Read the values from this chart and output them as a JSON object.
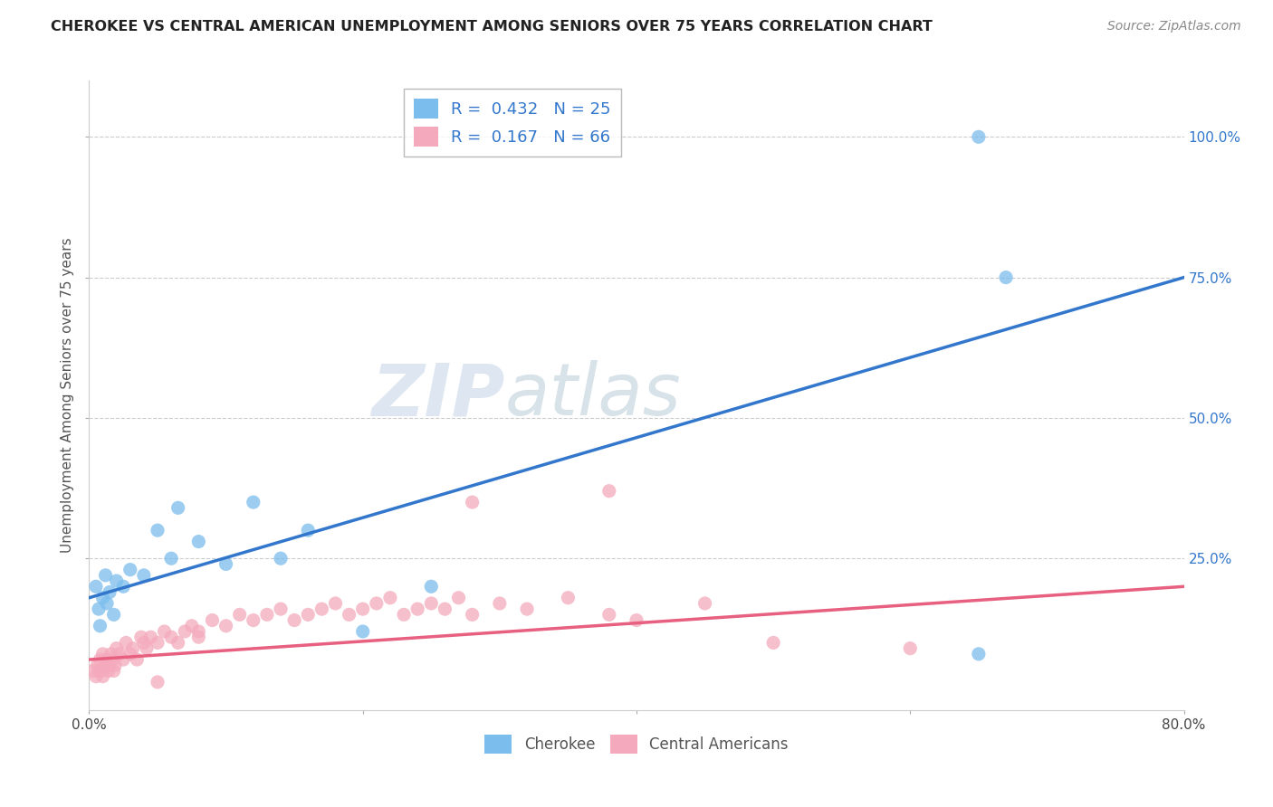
{
  "title": "CHEROKEE VS CENTRAL AMERICAN UNEMPLOYMENT AMONG SENIORS OVER 75 YEARS CORRELATION CHART",
  "source": "Source: ZipAtlas.com",
  "ylabel": "Unemployment Among Seniors over 75 years",
  "cherokee_R": 0.432,
  "cherokee_N": 25,
  "central_american_R": 0.167,
  "central_american_N": 66,
  "cherokee_color": "#7BBDED",
  "central_american_color": "#F4AABC",
  "cherokee_line_color": "#3377CC",
  "central_american_line_color": "#E86080",
  "xlim": [
    0.0,
    0.8
  ],
  "ylim": [
    -0.02,
    1.1
  ],
  "xtick_labels": [
    "0.0%",
    "",
    "",
    "",
    "80.0%"
  ],
  "xtick_vals": [
    0.0,
    0.2,
    0.4,
    0.6,
    0.8
  ],
  "ytick_labels": [
    "25.0%",
    "50.0%",
    "75.0%",
    "100.0%"
  ],
  "ytick_vals": [
    0.25,
    0.5,
    0.75,
    1.0
  ],
  "ch_line_x0": 0.0,
  "ch_line_y0": 0.18,
  "ch_line_x1": 0.8,
  "ch_line_y1": 0.75,
  "ca_line_x0": 0.0,
  "ca_line_y0": 0.07,
  "ca_line_x1": 0.8,
  "ca_line_y1": 0.2,
  "cherokee_x": [
    0.005,
    0.007,
    0.008,
    0.01,
    0.012,
    0.013,
    0.015,
    0.018,
    0.02,
    0.025,
    0.03,
    0.04,
    0.05,
    0.06,
    0.065,
    0.08,
    0.1,
    0.12,
    0.14,
    0.16,
    0.2,
    0.25,
    0.65,
    0.65,
    0.67
  ],
  "cherokee_y": [
    0.2,
    0.16,
    0.13,
    0.18,
    0.22,
    0.17,
    0.19,
    0.15,
    0.21,
    0.2,
    0.23,
    0.22,
    0.3,
    0.25,
    0.34,
    0.28,
    0.24,
    0.35,
    0.25,
    0.3,
    0.12,
    0.2,
    1.0,
    0.08,
    0.75
  ],
  "central_american_x": [
    0.003,
    0.005,
    0.006,
    0.007,
    0.008,
    0.009,
    0.01,
    0.01,
    0.012,
    0.013,
    0.014,
    0.015,
    0.016,
    0.017,
    0.018,
    0.019,
    0.02,
    0.022,
    0.025,
    0.027,
    0.03,
    0.032,
    0.035,
    0.038,
    0.04,
    0.042,
    0.045,
    0.05,
    0.055,
    0.06,
    0.065,
    0.07,
    0.075,
    0.08,
    0.09,
    0.1,
    0.11,
    0.12,
    0.13,
    0.14,
    0.15,
    0.16,
    0.17,
    0.18,
    0.19,
    0.2,
    0.21,
    0.22,
    0.23,
    0.24,
    0.25,
    0.26,
    0.27,
    0.28,
    0.3,
    0.32,
    0.35,
    0.38,
    0.4,
    0.45,
    0.5,
    0.6,
    0.38,
    0.28,
    0.08,
    0.05
  ],
  "central_american_y": [
    0.05,
    0.04,
    0.06,
    0.05,
    0.07,
    0.05,
    0.04,
    0.08,
    0.06,
    0.07,
    0.05,
    0.06,
    0.08,
    0.07,
    0.05,
    0.06,
    0.09,
    0.08,
    0.07,
    0.1,
    0.08,
    0.09,
    0.07,
    0.11,
    0.1,
    0.09,
    0.11,
    0.1,
    0.12,
    0.11,
    0.1,
    0.12,
    0.13,
    0.11,
    0.14,
    0.13,
    0.15,
    0.14,
    0.15,
    0.16,
    0.14,
    0.15,
    0.16,
    0.17,
    0.15,
    0.16,
    0.17,
    0.18,
    0.15,
    0.16,
    0.17,
    0.16,
    0.18,
    0.15,
    0.17,
    0.16,
    0.18,
    0.15,
    0.14,
    0.17,
    0.1,
    0.09,
    0.37,
    0.35,
    0.12,
    0.03
  ],
  "watermark_zip": "ZIP",
  "watermark_atlas": "atlas",
  "background_color": "#FFFFFF",
  "grid_color": "#CCCCCC"
}
